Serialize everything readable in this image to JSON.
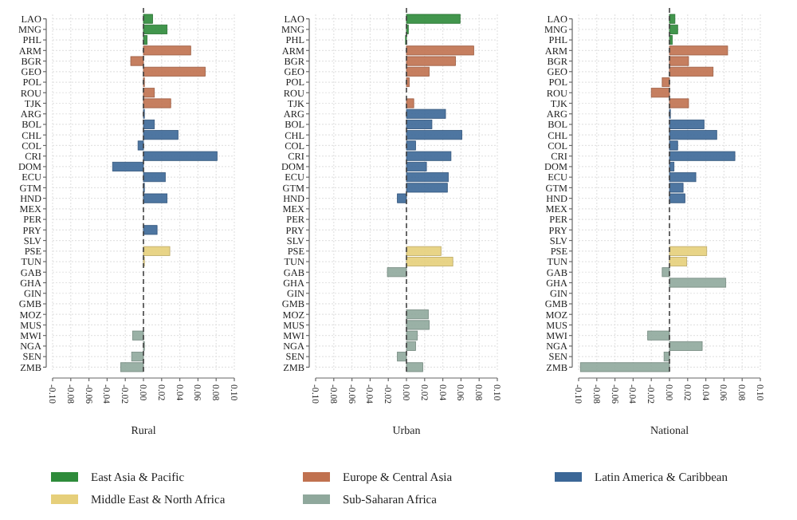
{
  "chart_data": [
    {
      "type": "bar",
      "orientation": "horizontal",
      "xlabel": "Rural",
      "categories": [
        "LAO",
        "MNG",
        "PHL",
        "ARM",
        "BGR",
        "GEO",
        "POL",
        "ROU",
        "TJK",
        "ARG",
        "BOL",
        "CHL",
        "COL",
        "CRI",
        "DOM",
        "ECU",
        "GTM",
        "HND",
        "MEX",
        "PER",
        "PRY",
        "SLV",
        "PSE",
        "TUN",
        "GAB",
        "GHA",
        "GIN",
        "GMB",
        "MOZ",
        "MUS",
        "MWI",
        "NGA",
        "SEN",
        "ZMB"
      ],
      "xlim": [
        -0.1,
        0.1
      ],
      "xticks": [
        {
          "value": -0.1,
          "label": "-0.10"
        },
        {
          "value": -0.08,
          "label": "-0.08"
        },
        {
          "value": -0.06,
          "label": "-0.06"
        },
        {
          "value": -0.04,
          "label": "-0.04"
        },
        {
          "value": -0.02,
          "label": "-0.02"
        },
        {
          "value": 0,
          "label": "0.00"
        },
        {
          "value": 0.02,
          "label": "0.02"
        },
        {
          "value": 0.04,
          "label": "0.04"
        },
        {
          "value": 0.06,
          "label": "0.06"
        },
        {
          "value": 0.08,
          "label": "0.08"
        },
        {
          "value": 0.1,
          "label": "0.10"
        }
      ],
      "grid": true,
      "legend": "bottom",
      "ref_lines": [
        {
          "axis": "x",
          "value": 0,
          "line_style": "dashed"
        }
      ],
      "series": [
        {
          "name": "East Asia & Pacific",
          "color": "#2e8b3a",
          "values": [
            0.01,
            0.026,
            0.004,
            null,
            null,
            null,
            null,
            null,
            null,
            null,
            null,
            null,
            null,
            null,
            null,
            null,
            null,
            null,
            null,
            null,
            null,
            null,
            null,
            null,
            null,
            null,
            null,
            null,
            null,
            null,
            null,
            null,
            null,
            null
          ]
        },
        {
          "name": "Europe & Central Asia",
          "color": "#c0714f",
          "values": [
            null,
            null,
            null,
            0.052,
            -0.014,
            0.068,
            0.001,
            0.012,
            0.03,
            null,
            null,
            null,
            null,
            null,
            null,
            null,
            null,
            null,
            null,
            null,
            null,
            null,
            null,
            null,
            null,
            null,
            null,
            null,
            null,
            null,
            null,
            null,
            null,
            null
          ]
        },
        {
          "name": "Latin America & Caribbean",
          "color": "#3b6797",
          "values": [
            null,
            null,
            null,
            null,
            null,
            null,
            null,
            null,
            null,
            0.001,
            0.012,
            0.038,
            -0.006,
            0.081,
            -0.034,
            0.024,
            0.001,
            0.026,
            null,
            null,
            0.015,
            null,
            null,
            null,
            null,
            null,
            null,
            null,
            null,
            null,
            null,
            null,
            null,
            null
          ]
        },
        {
          "name": "Middle East & North Africa",
          "color": "#e6cf7a",
          "values": [
            null,
            null,
            null,
            null,
            null,
            null,
            null,
            null,
            null,
            null,
            null,
            null,
            null,
            null,
            null,
            null,
            null,
            null,
            null,
            null,
            null,
            null,
            0.029,
            0.001,
            null,
            null,
            null,
            null,
            null,
            null,
            null,
            null,
            null,
            null
          ]
        },
        {
          "name": "Sub-Saharan Africa",
          "color": "#8fa89c",
          "values": [
            null,
            null,
            null,
            null,
            null,
            null,
            null,
            null,
            null,
            null,
            null,
            null,
            null,
            null,
            null,
            null,
            null,
            null,
            null,
            null,
            null,
            null,
            null,
            null,
            null,
            null,
            null,
            null,
            null,
            null,
            -0.012,
            0.001,
            -0.013,
            -0.025
          ]
        }
      ]
    },
    {
      "type": "bar",
      "orientation": "horizontal",
      "xlabel": "Urban",
      "categories": [
        "LAO",
        "MNG",
        "PHL",
        "ARM",
        "BGR",
        "GEO",
        "POL",
        "ROU",
        "TJK",
        "ARG",
        "BOL",
        "CHL",
        "COL",
        "CRI",
        "DOM",
        "ECU",
        "GTM",
        "HND",
        "MEX",
        "PER",
        "PRY",
        "SLV",
        "PSE",
        "TUN",
        "GAB",
        "GHA",
        "GIN",
        "GMB",
        "MOZ",
        "MUS",
        "MWI",
        "NGA",
        "SEN",
        "ZMB"
      ],
      "xlim": [
        -0.1,
        0.1
      ],
      "xticks": [
        {
          "value": -0.1,
          "label": "-0.10"
        },
        {
          "value": -0.08,
          "label": "-0.08"
        },
        {
          "value": -0.06,
          "label": "-0.06"
        },
        {
          "value": -0.04,
          "label": "-0.04"
        },
        {
          "value": -0.02,
          "label": "-0.02"
        },
        {
          "value": 0,
          "label": "0.00"
        },
        {
          "value": 0.02,
          "label": "0.02"
        },
        {
          "value": 0.04,
          "label": "0.04"
        },
        {
          "value": 0.06,
          "label": "0.06"
        },
        {
          "value": 0.08,
          "label": "0.08"
        },
        {
          "value": 0.1,
          "label": "0.10"
        }
      ],
      "grid": true,
      "ref_lines": [
        {
          "axis": "x",
          "value": 0,
          "line_style": "dashed"
        }
      ],
      "series": [
        {
          "color": "#2e8b3a",
          "values": [
            0.059,
            0.002,
            -0.001,
            null,
            null,
            null,
            null,
            null,
            null,
            null,
            null,
            null,
            null,
            null,
            null,
            null,
            null,
            null,
            null,
            null,
            null,
            null,
            null,
            null,
            null,
            null,
            null,
            null,
            null,
            null,
            null,
            null,
            null,
            null
          ]
        },
        {
          "color": "#c0714f",
          "values": [
            null,
            null,
            null,
            0.074,
            0.054,
            0.025,
            0.003,
            0.0,
            0.008,
            null,
            null,
            null,
            null,
            null,
            null,
            null,
            null,
            null,
            null,
            null,
            null,
            null,
            null,
            null,
            null,
            null,
            null,
            null,
            null,
            null,
            null,
            null,
            null,
            null
          ]
        },
        {
          "color": "#3b6797",
          "values": [
            null,
            null,
            null,
            null,
            null,
            null,
            null,
            null,
            null,
            0.043,
            0.028,
            0.061,
            0.01,
            0.049,
            0.022,
            0.046,
            0.045,
            -0.01,
            null,
            null,
            null,
            null,
            null,
            null,
            null,
            null,
            null,
            null,
            null,
            null,
            null,
            null,
            null,
            null
          ]
        },
        {
          "color": "#e6cf7a",
          "values": [
            null,
            null,
            null,
            null,
            null,
            null,
            null,
            null,
            null,
            null,
            null,
            null,
            null,
            null,
            null,
            null,
            null,
            null,
            null,
            null,
            null,
            null,
            0.038,
            0.051,
            null,
            null,
            null,
            null,
            null,
            null,
            null,
            null,
            null,
            null
          ]
        },
        {
          "color": "#8fa89c",
          "values": [
            null,
            null,
            null,
            null,
            null,
            null,
            null,
            null,
            null,
            null,
            null,
            null,
            null,
            null,
            null,
            null,
            null,
            null,
            null,
            null,
            null,
            null,
            null,
            null,
            -0.021,
            null,
            null,
            null,
            0.024,
            0.025,
            0.012,
            0.01,
            -0.01,
            0.018
          ]
        }
      ]
    },
    {
      "type": "bar",
      "orientation": "horizontal",
      "xlabel": "National",
      "categories": [
        "LAO",
        "MNG",
        "PHL",
        "ARM",
        "BGR",
        "GEO",
        "POL",
        "ROU",
        "TJK",
        "ARG",
        "BOL",
        "CHL",
        "COL",
        "CRI",
        "DOM",
        "ECU",
        "GTM",
        "HND",
        "MEX",
        "PER",
        "PRY",
        "SLV",
        "PSE",
        "TUN",
        "GAB",
        "GHA",
        "GIN",
        "GMB",
        "MOZ",
        "MUS",
        "MWI",
        "NGA",
        "SEN",
        "ZMB"
      ],
      "xlim": [
        -0.1,
        0.1
      ],
      "xticks": [
        {
          "value": -0.1,
          "label": "-0.10"
        },
        {
          "value": -0.08,
          "label": "-0.08"
        },
        {
          "value": -0.06,
          "label": "-0.06"
        },
        {
          "value": -0.04,
          "label": "-0.04"
        },
        {
          "value": -0.02,
          "label": "-0.02"
        },
        {
          "value": 0,
          "label": "0.00"
        },
        {
          "value": 0.02,
          "label": "0.02"
        },
        {
          "value": 0.04,
          "label": "0.04"
        },
        {
          "value": 0.06,
          "label": "0.06"
        },
        {
          "value": 0.08,
          "label": "0.08"
        },
        {
          "value": 0.1,
          "label": "0.10"
        }
      ],
      "grid": true,
      "ref_lines": [
        {
          "axis": "x",
          "value": 0,
          "line_style": "dashed"
        }
      ],
      "series": [
        {
          "color": "#2e8b3a",
          "values": [
            0.006,
            0.009,
            0.003,
            null,
            null,
            null,
            null,
            null,
            null,
            null,
            null,
            null,
            null,
            null,
            null,
            null,
            null,
            null,
            null,
            null,
            null,
            null,
            null,
            null,
            null,
            null,
            null,
            null,
            null,
            null,
            null,
            null,
            null,
            null
          ]
        },
        {
          "color": "#c0714f",
          "values": [
            null,
            null,
            null,
            0.064,
            0.021,
            0.048,
            -0.008,
            -0.02,
            0.021,
            null,
            null,
            null,
            null,
            null,
            null,
            null,
            null,
            null,
            null,
            null,
            null,
            null,
            null,
            null,
            null,
            null,
            null,
            null,
            null,
            null,
            null,
            null,
            null,
            null
          ]
        },
        {
          "color": "#3b6797",
          "values": [
            null,
            null,
            null,
            null,
            null,
            null,
            null,
            null,
            null,
            0.001,
            0.038,
            0.052,
            0.009,
            0.072,
            0.005,
            0.029,
            0.015,
            0.017,
            null,
            null,
            null,
            null,
            null,
            null,
            null,
            null,
            null,
            null,
            null,
            null,
            null,
            null,
            null,
            null
          ]
        },
        {
          "color": "#e6cf7a",
          "values": [
            null,
            null,
            null,
            null,
            null,
            null,
            null,
            null,
            null,
            null,
            null,
            null,
            null,
            null,
            null,
            null,
            null,
            null,
            null,
            null,
            null,
            null,
            0.041,
            0.019,
            null,
            null,
            null,
            null,
            null,
            null,
            null,
            null,
            null,
            null
          ]
        },
        {
          "color": "#8fa89c",
          "values": [
            null,
            null,
            null,
            null,
            null,
            null,
            null,
            null,
            null,
            null,
            null,
            null,
            null,
            null,
            null,
            null,
            null,
            null,
            null,
            null,
            null,
            null,
            null,
            null,
            -0.008,
            0.062,
            null,
            null,
            null,
            null,
            -0.024,
            0.036,
            -0.006,
            -0.098
          ]
        }
      ]
    }
  ]
}
